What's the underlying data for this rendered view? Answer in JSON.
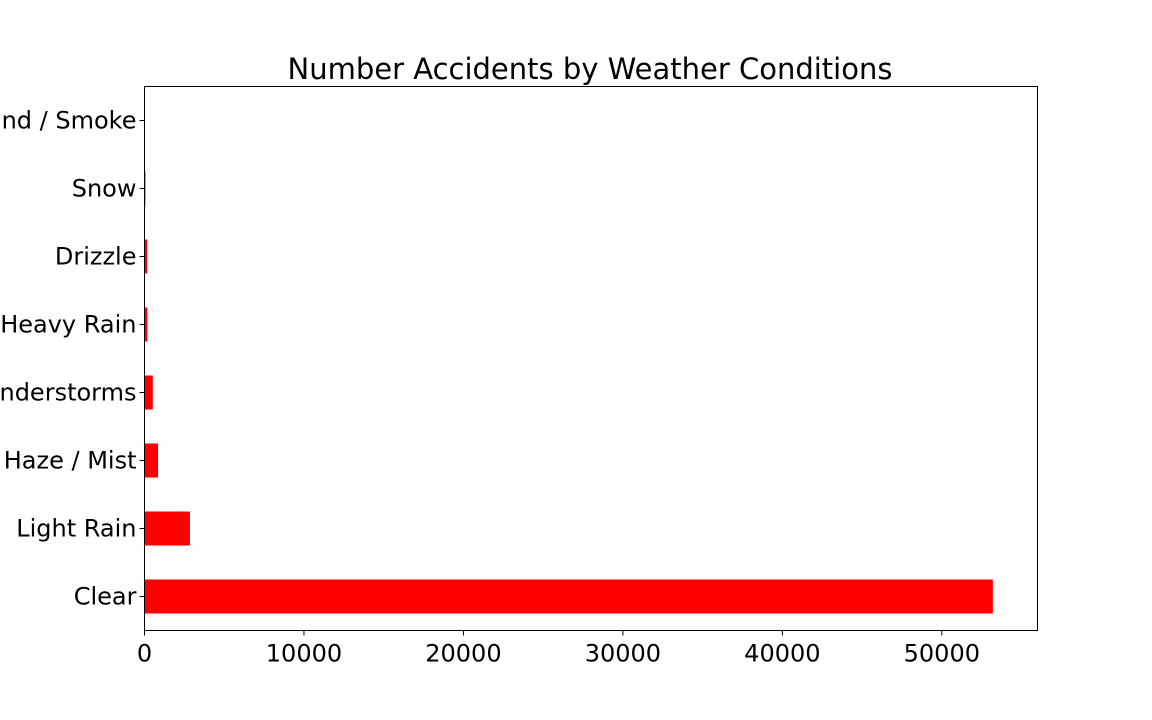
{
  "chart_data": {
    "type": "bar",
    "orientation": "horizontal",
    "title": "Number Accidents by Weather Conditions",
    "xlabel": "",
    "ylabel": "",
    "categories": [
      "Clear",
      "Light Rain",
      "Haze / Mist",
      "Thunderstorms",
      "Heavy Rain",
      "Drizzle",
      "Snow",
      "Sand / Smoke"
    ],
    "values": [
      53200,
      2850,
      850,
      520,
      180,
      170,
      60,
      20
    ],
    "xlim": [
      0,
      56000
    ],
    "xticks": [
      0,
      10000,
      20000,
      30000,
      40000,
      50000
    ],
    "xtick_labels": [
      "0",
      "10000",
      "20000",
      "30000",
      "40000",
      "50000"
    ],
    "bar_color": "#ff0000",
    "grid": false,
    "legend": "none"
  }
}
